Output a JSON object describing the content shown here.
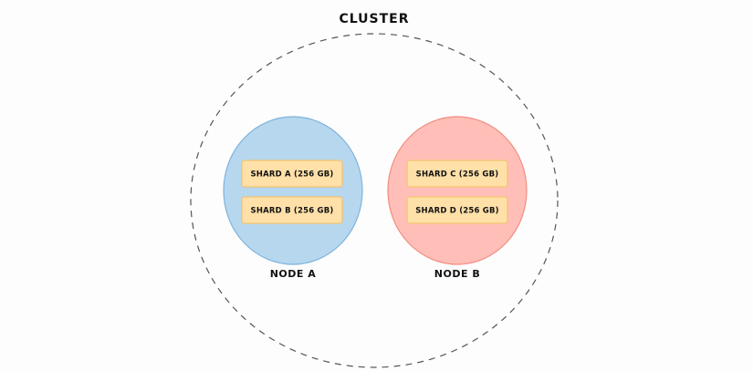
{
  "cluster": {
    "title": "CLUSTER"
  },
  "nodes": [
    {
      "label": "NODE A",
      "fill": "#b6d7ee",
      "stroke": "#7fb3dd",
      "shards": [
        {
          "label": "SHARD A (256 GB)"
        },
        {
          "label": "SHARD B (256 GB)"
        }
      ]
    },
    {
      "label": "NODE B",
      "fill": "#ffbfb8",
      "stroke": "#f28c80",
      "shards": [
        {
          "label": "SHARD C (256 GB)"
        },
        {
          "label": "SHARD D (256 GB)"
        }
      ]
    }
  ],
  "colors": {
    "shard_fill": "#ffe0a8",
    "shard_stroke": "#f3c36f",
    "cluster_border": "#555555",
    "background": "#fdfdfd"
  }
}
